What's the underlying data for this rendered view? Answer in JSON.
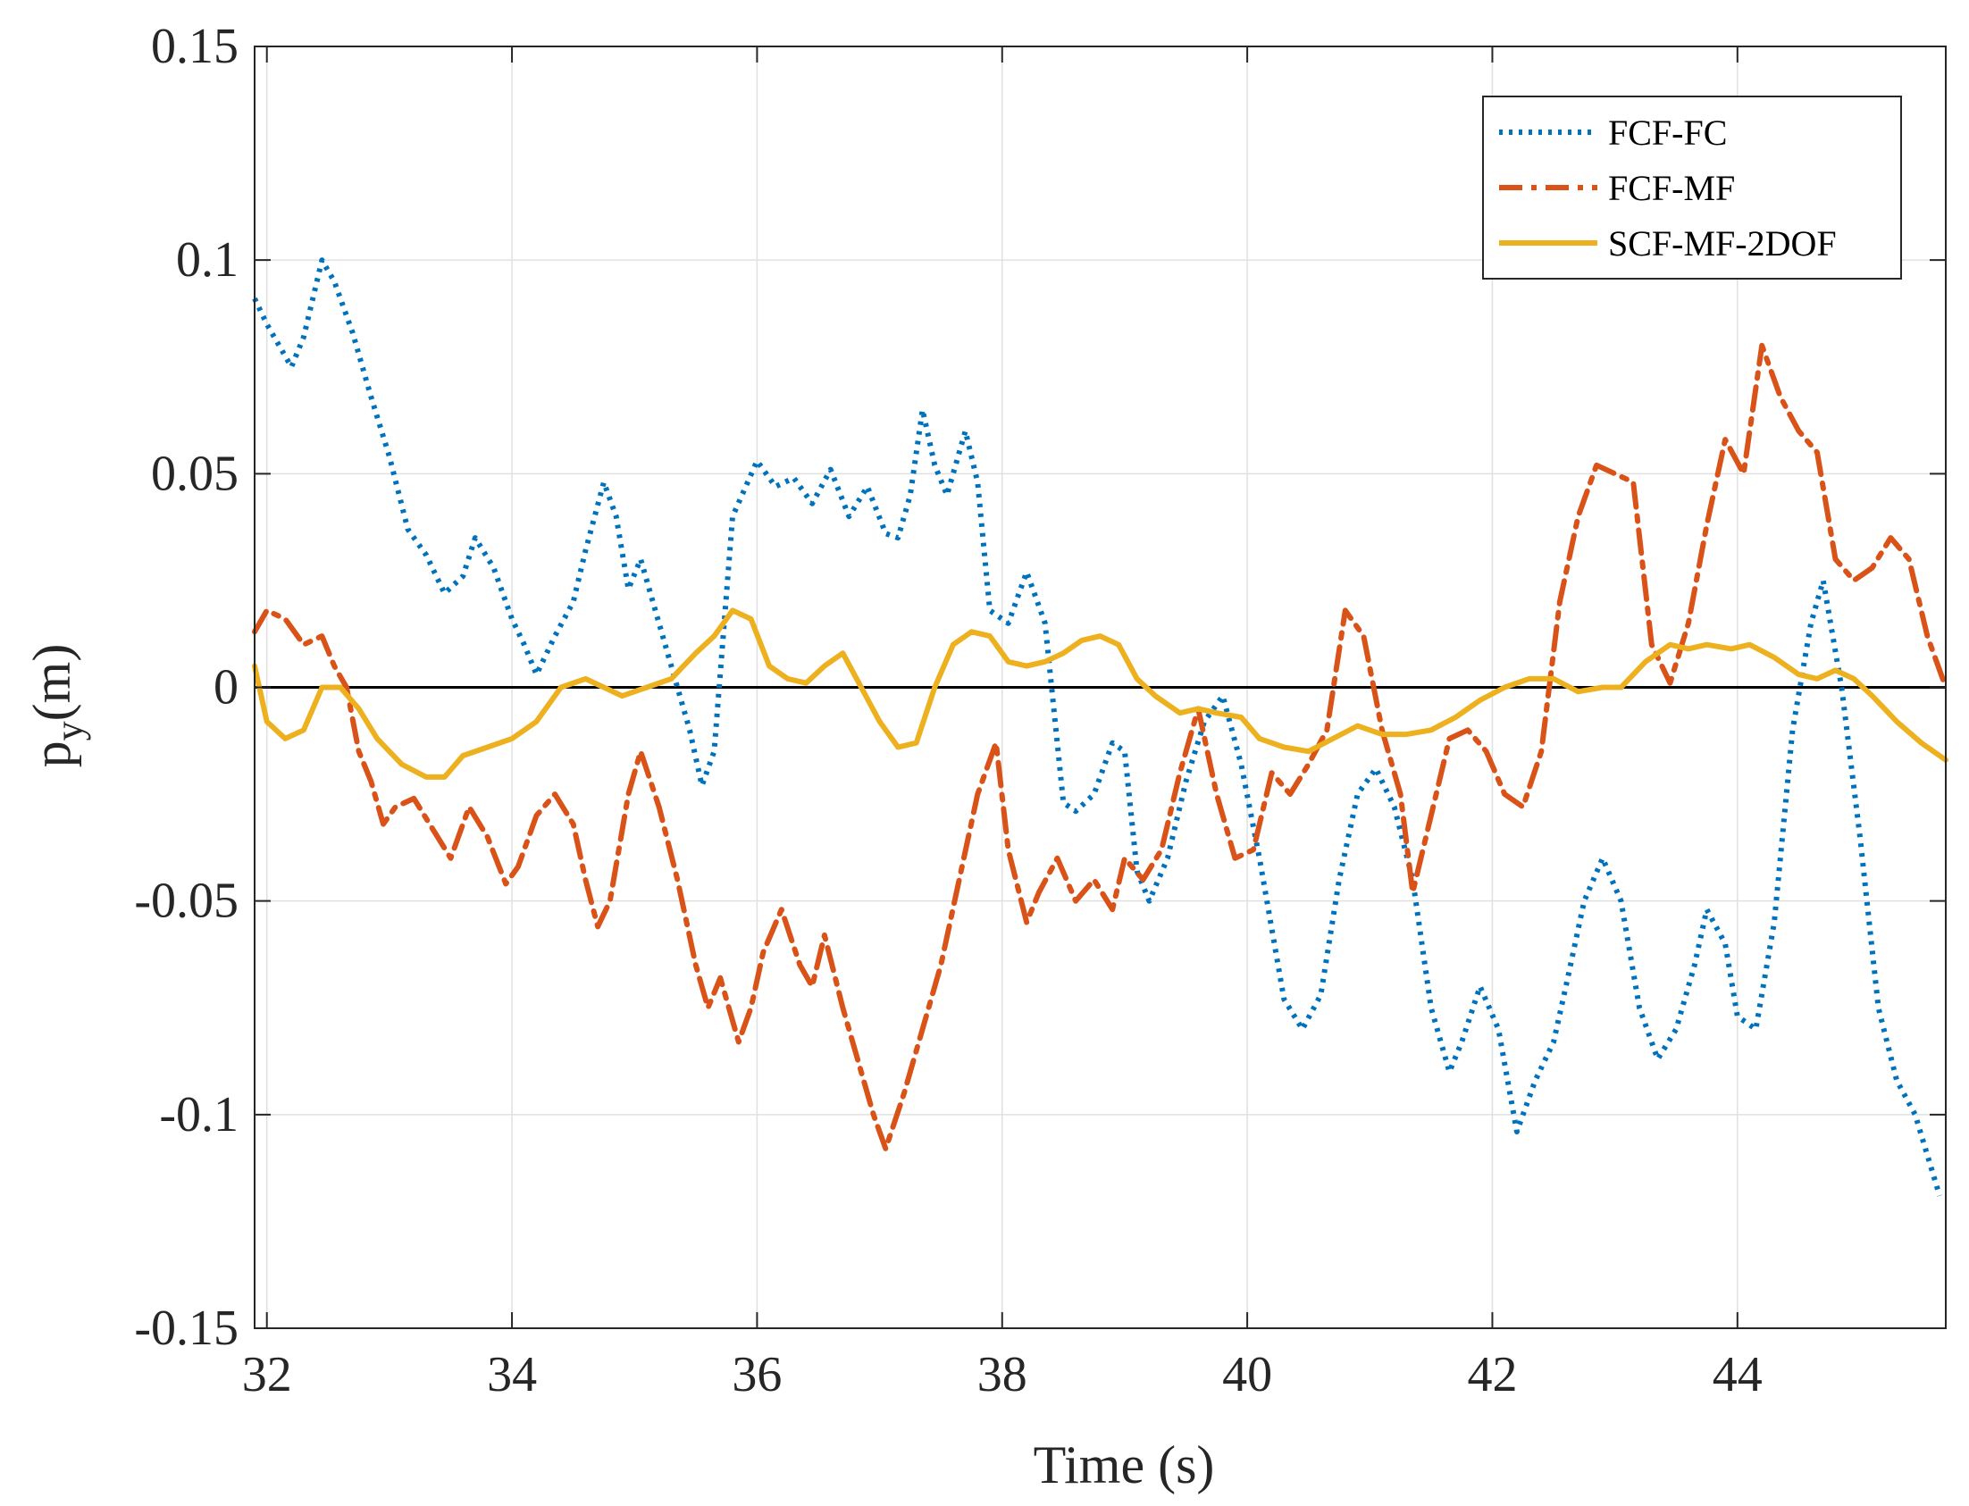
{
  "chart_data": {
    "type": "line",
    "title": "",
    "xlabel": "Time (s)",
    "ylabel_main": "p",
    "ylabel_sub": "y",
    "ylabel_unit": "(m)",
    "xlim": [
      31.9,
      45.7
    ],
    "ylim": [
      -0.15,
      0.15
    ],
    "xticks": [
      32,
      34,
      36,
      38,
      40,
      42,
      44
    ],
    "yticks": [
      -0.15,
      -0.1,
      -0.05,
      0,
      0.05,
      0.1,
      0.15
    ],
    "xtick_labels": [
      "32",
      "34",
      "36",
      "38",
      "40",
      "42",
      "44"
    ],
    "ytick_labels": [
      "-0.15",
      "-0.1",
      "-0.05",
      "0",
      "0.05",
      "0.1",
      "0.15"
    ],
    "grid": true,
    "legend_position": "top-right",
    "reference_line": {
      "y": 0,
      "color": "#000000"
    },
    "series": [
      {
        "name": "FCF-FC",
        "color": "#0072BD",
        "style": "dotted",
        "x": [
          31.9,
          32.0,
          32.1,
          32.2,
          32.3,
          32.45,
          32.55,
          32.7,
          32.85,
          33.0,
          33.15,
          33.3,
          33.45,
          33.6,
          33.7,
          33.85,
          34.0,
          34.1,
          34.2,
          34.35,
          34.5,
          34.6,
          34.75,
          34.85,
          34.95,
          35.05,
          35.15,
          35.3,
          35.45,
          35.55,
          35.65,
          35.8,
          36.0,
          36.15,
          36.3,
          36.45,
          36.6,
          36.75,
          36.9,
          37.05,
          37.15,
          37.25,
          37.35,
          37.45,
          37.55,
          37.7,
          37.8,
          37.9,
          38.05,
          38.2,
          38.35,
          38.5,
          38.6,
          38.75,
          38.9,
          39.0,
          39.1,
          39.2,
          39.35,
          39.5,
          39.65,
          39.8,
          39.95,
          40.1,
          40.3,
          40.45,
          40.6,
          40.75,
          40.9,
          41.05,
          41.2,
          41.35,
          41.5,
          41.65,
          41.75,
          41.9,
          42.05,
          42.2,
          42.35,
          42.5,
          42.6,
          42.75,
          42.9,
          43.05,
          43.2,
          43.35,
          43.5,
          43.65,
          43.75,
          43.9,
          44.0,
          44.15,
          44.3,
          44.45,
          44.6,
          44.7,
          44.85,
          45.0,
          45.15,
          45.3,
          45.45,
          45.65
        ],
        "y": [
          0.091,
          0.085,
          0.08,
          0.075,
          0.082,
          0.1,
          0.095,
          0.083,
          0.068,
          0.054,
          0.037,
          0.031,
          0.022,
          0.026,
          0.035,
          0.028,
          0.016,
          0.01,
          0.003,
          0.012,
          0.02,
          0.032,
          0.048,
          0.04,
          0.023,
          0.03,
          0.02,
          0.005,
          -0.01,
          -0.023,
          -0.015,
          0.04,
          0.053,
          0.047,
          0.049,
          0.043,
          0.051,
          0.04,
          0.047,
          0.036,
          0.035,
          0.045,
          0.065,
          0.052,
          0.045,
          0.06,
          0.048,
          0.018,
          0.015,
          0.027,
          0.015,
          -0.027,
          -0.029,
          -0.025,
          -0.013,
          -0.015,
          -0.043,
          -0.05,
          -0.04,
          -0.022,
          -0.008,
          -0.002,
          -0.018,
          -0.04,
          -0.073,
          -0.08,
          -0.072,
          -0.045,
          -0.025,
          -0.019,
          -0.028,
          -0.045,
          -0.075,
          -0.09,
          -0.083,
          -0.07,
          -0.08,
          -0.104,
          -0.092,
          -0.083,
          -0.07,
          -0.05,
          -0.04,
          -0.05,
          -0.075,
          -0.087,
          -0.08,
          -0.065,
          -0.052,
          -0.06,
          -0.077,
          -0.08,
          -0.055,
          -0.01,
          0.015,
          0.025,
          0.0,
          -0.035,
          -0.075,
          -0.092,
          -0.1,
          -0.119
        ]
      },
      {
        "name": "FCF-MF",
        "color": "#D95319",
        "style": "dashdot",
        "x": [
          31.9,
          32.0,
          32.15,
          32.3,
          32.45,
          32.55,
          32.65,
          32.75,
          32.85,
          32.95,
          33.05,
          33.2,
          33.35,
          33.5,
          33.65,
          33.8,
          33.95,
          34.05,
          34.2,
          34.35,
          34.5,
          34.6,
          34.7,
          34.8,
          34.95,
          35.05,
          35.2,
          35.35,
          35.5,
          35.6,
          35.7,
          35.85,
          35.95,
          36.05,
          36.2,
          36.35,
          36.45,
          36.55,
          36.7,
          36.85,
          36.95,
          37.05,
          37.2,
          37.35,
          37.5,
          37.65,
          37.8,
          37.95,
          38.05,
          38.2,
          38.3,
          38.45,
          38.6,
          38.75,
          38.9,
          39.0,
          39.15,
          39.3,
          39.45,
          39.6,
          39.75,
          39.9,
          40.05,
          40.2,
          40.35,
          40.5,
          40.65,
          40.8,
          40.95,
          41.1,
          41.25,
          41.35,
          41.5,
          41.65,
          41.8,
          41.95,
          42.1,
          42.25,
          42.4,
          42.55,
          42.7,
          42.85,
          43.0,
          43.15,
          43.3,
          43.45,
          43.6,
          43.75,
          43.9,
          44.05,
          44.2,
          44.35,
          44.5,
          44.65,
          44.8,
          44.95,
          45.1,
          45.25,
          45.4,
          45.55,
          45.7
        ],
        "y": [
          0.013,
          0.018,
          0.016,
          0.01,
          0.012,
          0.005,
          0.0,
          -0.015,
          -0.022,
          -0.032,
          -0.028,
          -0.026,
          -0.033,
          -0.04,
          -0.028,
          -0.035,
          -0.046,
          -0.042,
          -0.03,
          -0.025,
          -0.032,
          -0.045,
          -0.056,
          -0.05,
          -0.025,
          -0.015,
          -0.028,
          -0.045,
          -0.065,
          -0.075,
          -0.068,
          -0.083,
          -0.075,
          -0.062,
          -0.052,
          -0.065,
          -0.07,
          -0.058,
          -0.075,
          -0.09,
          -0.1,
          -0.108,
          -0.095,
          -0.08,
          -0.065,
          -0.045,
          -0.025,
          -0.013,
          -0.038,
          -0.055,
          -0.048,
          -0.04,
          -0.05,
          -0.045,
          -0.052,
          -0.04,
          -0.045,
          -0.038,
          -0.02,
          -0.005,
          -0.025,
          -0.04,
          -0.038,
          -0.02,
          -0.025,
          -0.018,
          -0.01,
          0.018,
          0.012,
          -0.01,
          -0.025,
          -0.048,
          -0.03,
          -0.012,
          -0.01,
          -0.015,
          -0.025,
          -0.028,
          -0.015,
          0.02,
          0.04,
          0.052,
          0.05,
          0.048,
          0.01,
          0.001,
          0.015,
          0.038,
          0.058,
          0.05,
          0.08,
          0.068,
          0.06,
          0.055,
          0.03,
          0.025,
          0.028,
          0.035,
          0.03,
          0.012,
          0.0
        ]
      },
      {
        "name": "SCF-MF-2DOF",
        "color": "#EDB120",
        "style": "solid",
        "x": [
          31.9,
          32.0,
          32.15,
          32.3,
          32.45,
          32.6,
          32.75,
          32.9,
          33.1,
          33.3,
          33.45,
          33.6,
          33.8,
          34.0,
          34.2,
          34.4,
          34.6,
          34.75,
          34.9,
          35.1,
          35.3,
          35.5,
          35.65,
          35.8,
          35.95,
          36.1,
          36.25,
          36.4,
          36.55,
          36.7,
          36.85,
          37.0,
          37.15,
          37.3,
          37.45,
          37.6,
          37.75,
          37.9,
          38.05,
          38.2,
          38.35,
          38.5,
          38.65,
          38.8,
          38.95,
          39.1,
          39.25,
          39.45,
          39.6,
          39.75,
          39.95,
          40.1,
          40.3,
          40.5,
          40.7,
          40.9,
          41.1,
          41.3,
          41.5,
          41.7,
          41.9,
          42.1,
          42.3,
          42.5,
          42.7,
          42.9,
          43.05,
          43.25,
          43.45,
          43.6,
          43.75,
          43.95,
          44.1,
          44.3,
          44.5,
          44.65,
          44.8,
          44.95,
          45.1,
          45.3,
          45.5,
          45.7
        ],
        "y": [
          0.005,
          -0.008,
          -0.012,
          -0.01,
          0.0,
          0.0,
          -0.005,
          -0.012,
          -0.018,
          -0.021,
          -0.021,
          -0.016,
          -0.014,
          -0.012,
          -0.008,
          0.0,
          0.002,
          0.0,
          -0.002,
          0.0,
          0.002,
          0.008,
          0.012,
          0.018,
          0.016,
          0.005,
          0.002,
          0.001,
          0.005,
          0.008,
          0.0,
          -0.008,
          -0.014,
          -0.013,
          0.0,
          0.01,
          0.013,
          0.012,
          0.006,
          0.005,
          0.006,
          0.008,
          0.011,
          0.012,
          0.01,
          0.002,
          -0.002,
          -0.006,
          -0.005,
          -0.006,
          -0.007,
          -0.012,
          -0.014,
          -0.015,
          -0.012,
          -0.009,
          -0.011,
          -0.011,
          -0.01,
          -0.007,
          -0.003,
          0.0,
          0.002,
          0.002,
          -0.001,
          0.0,
          0.0,
          0.006,
          0.01,
          0.009,
          0.01,
          0.009,
          0.01,
          0.007,
          0.003,
          0.002,
          0.004,
          0.002,
          -0.002,
          -0.008,
          -0.013,
          -0.017
        ]
      }
    ]
  }
}
